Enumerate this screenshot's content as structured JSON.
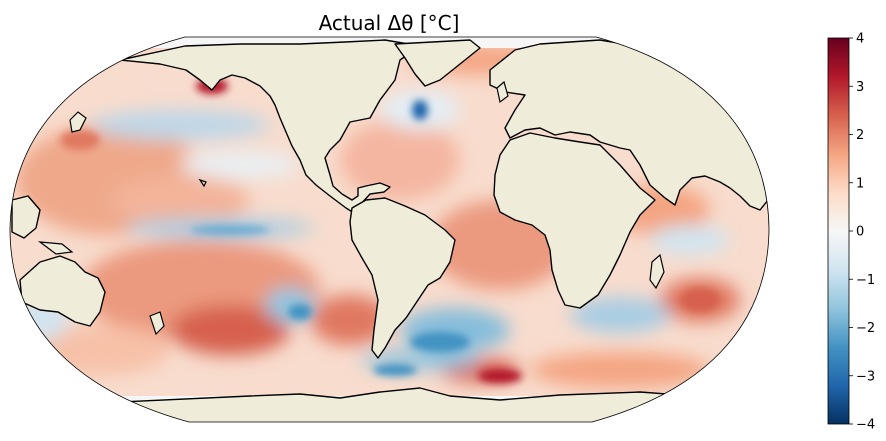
{
  "title": "Actual Δθ [$^\\circ$C]",
  "title_display": "Actual Δθ [°C]",
  "map": {
    "projection": "Robinson",
    "central_longitude": -90,
    "field": "sea surface potential temperature change",
    "land_color": "#efedd9",
    "coastline_color": "#000000"
  },
  "colorbar": {
    "colormap": "RdBu_r",
    "vmin": -4,
    "vmax": 4,
    "ticks": [
      "4",
      "3",
      "2",
      "1",
      "0",
      "−1",
      "−2",
      "−3",
      "−4"
    ],
    "colors": [
      "#053061",
      "#2166ac",
      "#4393c3",
      "#92c5de",
      "#d1e5f0",
      "#f7f7f7",
      "#fddbc7",
      "#f4a582",
      "#d6604d",
      "#b2182b",
      "#67001f"
    ]
  }
}
